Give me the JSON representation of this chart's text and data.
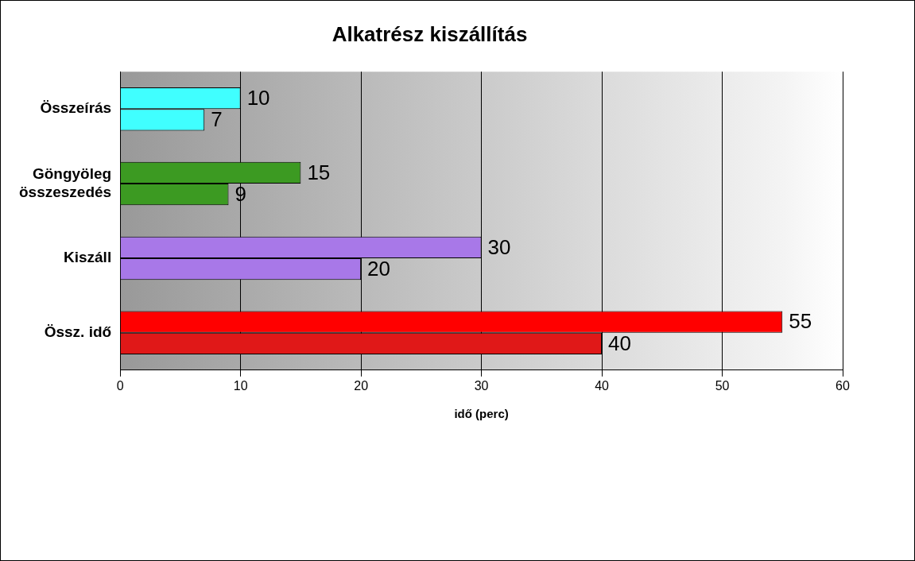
{
  "chart_data": {
    "type": "bar",
    "orientation": "horizontal",
    "title": "Alkatrész kiszállítás",
    "xlabel": "idő (perc)",
    "categories": [
      "Összeírás",
      "Göngyöleg összeszedés",
      "Kiszáll",
      "Össz. idő"
    ],
    "series": [
      {
        "colors": [
          "#40ffff",
          "#3c9a22",
          "#a878e8",
          "#ff0000"
        ],
        "values": [
          10,
          15,
          30,
          55
        ]
      },
      {
        "colors": [
          "#40ffff",
          "#3c9a22",
          "#a878e8",
          "#e01818"
        ],
        "values": [
          7,
          9,
          20,
          40
        ]
      }
    ],
    "xlim": [
      0,
      60
    ],
    "xticks": [
      0,
      10,
      20,
      30,
      40,
      50,
      60
    ],
    "grid": "x",
    "data_labels": true,
    "legend": false
  }
}
